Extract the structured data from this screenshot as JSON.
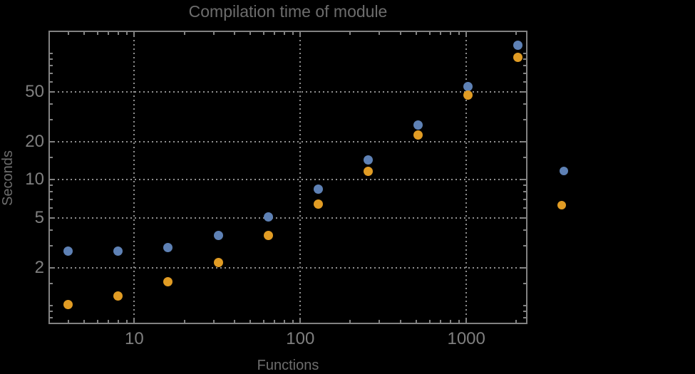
{
  "title": "Compilation time of module",
  "x_axis_label": "Functions",
  "y_axis_label": "Seconds",
  "chart_data": {
    "type": "scatter",
    "title": "Compilation time of module",
    "xlabel": "Functions",
    "ylabel": "Seconds",
    "x_scale": "log",
    "y_scale": "log",
    "xlim": [
      3.1,
      2330
    ],
    "ylim": [
      0.72,
      150
    ],
    "grid": true,
    "x": [
      4,
      8,
      16,
      32,
      64,
      128,
      256,
      512,
      1024,
      2048
    ],
    "series": [
      {
        "name": "",
        "marker_color": "#5e81b5",
        "values": [
          2.7,
          2.7,
          2.9,
          3.6,
          5.1,
          8.4,
          14.3,
          27,
          55,
          117
        ]
      },
      {
        "name": "",
        "marker_color": "#e19c24",
        "values": [
          1.03,
          1.2,
          1.55,
          2.2,
          3.6,
          6.4,
          11.7,
          22.5,
          47,
          93
        ]
      }
    ],
    "x_ticks": [
      {
        "value": 10,
        "label": "10"
      },
      {
        "value": 100,
        "label": "100"
      },
      {
        "value": 1000,
        "label": "1000"
      }
    ],
    "y_ticks": [
      {
        "value": 50,
        "label": "50"
      },
      {
        "value": 20,
        "label": "20"
      },
      {
        "value": 10,
        "label": "10"
      },
      {
        "value": 5,
        "label": "5"
      },
      {
        "value": 2,
        "label": "2"
      }
    ],
    "x_minor_ticks": [
      4,
      5,
      6,
      7,
      8,
      9,
      20,
      30,
      40,
      50,
      60,
      70,
      80,
      90,
      200,
      300,
      400,
      500,
      600,
      700,
      800,
      900,
      2000
    ],
    "y_minor_ticks": [
      0.8,
      0.9,
      1,
      1.5,
      3,
      4,
      6,
      7,
      8,
      9,
      15,
      30,
      40,
      60,
      70,
      80,
      90,
      100
    ],
    "legend_position": "right",
    "legend_markers": [
      {
        "color": "#5e81b5"
      },
      {
        "color": "#e19c24"
      }
    ]
  },
  "colors": {
    "background": "#000000",
    "frame": "#828282",
    "grid": "#8f8f8f",
    "tick_label": "#7f7f7f",
    "title": "#6d6d6d",
    "axis_label": "#6d6d6d",
    "series_1": "#5e81b5",
    "series_2": "#e19c24"
  }
}
